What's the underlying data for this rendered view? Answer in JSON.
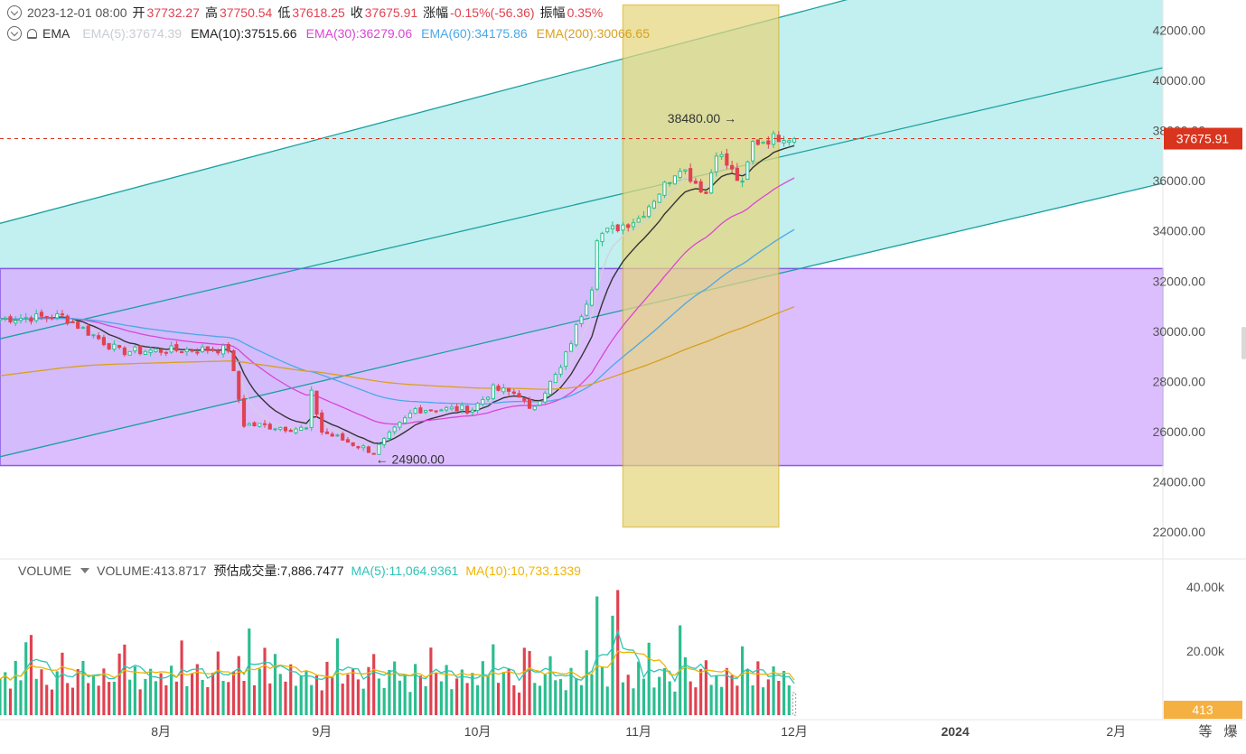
{
  "header": {
    "date": "2023-12-01 08:00",
    "open_label": "开",
    "open": "37732.27",
    "high_label": "高",
    "high": "37750.54",
    "low_label": "低",
    "low": "37618.25",
    "close_label": "收",
    "close": "37675.91",
    "change_label": "涨幅",
    "change": "-0.15%(-56.36)",
    "amp_label": "振幅",
    "amp": "0.35%"
  },
  "ema_header": {
    "label": "EMA",
    "ema5": "EMA(5):37674.39",
    "ema10": "EMA(10):37515.66",
    "ema30": "EMA(30):36279.06",
    "ema60": "EMA(60):34175.86",
    "ema200": "EMA(200):30066.65"
  },
  "volume_header": {
    "label": "VOLUME",
    "volume": "VOLUME:413.8717",
    "estimate": "预估成交量:7,886.7477",
    "ma5": "MA(5):11,064.9361",
    "ma10": "MA(10):10,733.1339"
  },
  "price_axis": {
    "ticks": [
      "42000.00",
      "40000.00",
      "38000.00",
      "36000.00",
      "34000.00",
      "32000.00",
      "30000.00",
      "28000.00",
      "26000.00",
      "24000.00",
      "22000.00"
    ],
    "current_label": "37675.91"
  },
  "volume_axis": {
    "ticks": [
      "40.00k",
      "20.00k"
    ],
    "current_label": "413"
  },
  "time_axis": {
    "ticks": [
      "8月",
      "9月",
      "10月",
      "11月",
      "12月",
      "2024",
      "2月"
    ],
    "right_icons": [
      "等",
      "爆"
    ]
  },
  "annotations": {
    "high_marker": "38480.00",
    "low_marker": "24900.00"
  },
  "colors": {
    "up": "#2bbd8f",
    "down": "#e04251",
    "ema5": "#cfd3d9",
    "ema10": "#333333",
    "ema30": "#d946d4",
    "ema60": "#4aa8e8",
    "ema200": "#d8a020",
    "channel_fill": "#bfeeee",
    "channel_line": "#1aa0a0",
    "range_fill": "#d7b3ff",
    "range_line": "#7b3fe4",
    "highlight_fill": "#e6d67e",
    "highlight_line": "#d9b62a",
    "current_price": "#d9341e",
    "vol_ma5": "#2ec4b6",
    "vol_ma10": "#f0b400"
  },
  "chart_data": {
    "type": "candlestick",
    "interval": "1D",
    "xlim": [
      "2023-07-01",
      "2024-02-10"
    ],
    "ylim": [
      21000,
      43200
    ],
    "volume_ylim": [
      0,
      47000
    ],
    "current_price": 37675.91,
    "high_marker": {
      "date": "2023-11-23",
      "value": 38480
    },
    "low_marker": {
      "date": "2023-09-11",
      "value": 24900
    },
    "shapes": {
      "channel": {
        "upper": [
          [
            "2023-07-01",
            34300
          ],
          [
            "2023-12-31",
            44300
          ]
        ],
        "mid": [
          [
            "2023-07-01",
            29700
          ],
          [
            "2024-02-10",
            40500
          ]
        ],
        "lower": [
          [
            "2023-07-01",
            25000
          ],
          [
            "2024-02-10",
            35900
          ]
        ]
      },
      "range_box": {
        "from": "2023-07-01",
        "to": "2024-02-10",
        "low": 24650,
        "high": 32500
      },
      "highlight_box": {
        "from": "2023-10-29",
        "to": "2023-11-28",
        "low": 22200,
        "high": 43000
      }
    },
    "anchors": [
      [
        "2023-07-01",
        30500
      ],
      [
        "2023-07-13",
        30600
      ],
      [
        "2023-07-24",
        29200
      ],
      [
        "2023-08-14",
        29300
      ],
      [
        "2023-08-17",
        26300
      ],
      [
        "2023-08-29",
        26100
      ],
      [
        "2023-08-30",
        27500
      ],
      [
        "2023-09-01",
        26000
      ],
      [
        "2023-09-11",
        25200
      ],
      [
        "2023-09-19",
        26900
      ],
      [
        "2023-09-30",
        26900
      ],
      [
        "2023-10-04",
        27700
      ],
      [
        "2023-10-09",
        27500
      ],
      [
        "2023-10-11",
        26800
      ],
      [
        "2023-10-17",
        28500
      ],
      [
        "2023-10-23",
        31800
      ],
      [
        "2023-10-24",
        33800
      ],
      [
        "2023-11-01",
        34500
      ],
      [
        "2023-11-09",
        36600
      ],
      [
        "2023-11-14",
        35500
      ],
      [
        "2023-11-16",
        37200
      ],
      [
        "2023-11-21",
        35800
      ],
      [
        "2023-11-23",
        37500
      ],
      [
        "2023-11-29",
        37800
      ],
      [
        "2023-12-01",
        37676
      ]
    ],
    "ema": [
      {
        "name": "EMA(5)",
        "period": 5,
        "last": 37674.39
      },
      {
        "name": "EMA(10)",
        "period": 10,
        "last": 37515.66
      },
      {
        "name": "EMA(30)",
        "period": 30,
        "last": 36279.06
      },
      {
        "name": "EMA(60)",
        "period": 60,
        "last": 34175.86
      },
      {
        "name": "EMA(200)",
        "period": 200,
        "last": 30066.65,
        "start": 28200
      }
    ],
    "volume": {
      "pattern": [
        9,
        12,
        7,
        15,
        10,
        22,
        8,
        11,
        14,
        9,
        7,
        13,
        18,
        10,
        8,
        12,
        16,
        9,
        11,
        7,
        14,
        10,
        8,
        19,
        12,
        9,
        15,
        7,
        11,
        13
      ],
      "spikes": [
        [
          "2023-07-07",
          25000
        ],
        [
          "2023-07-25",
          22000
        ],
        [
          "2023-08-18",
          27000
        ],
        [
          "2023-08-21",
          21000
        ],
        [
          "2023-10-10",
          21000
        ],
        [
          "2023-10-24",
          37000
        ],
        [
          "2023-10-27",
          31000
        ],
        [
          "2023-10-28",
          39000
        ],
        [
          "2023-11-09",
          28000
        ]
      ],
      "last": 413.87
    },
    "vol_ma": [
      {
        "name": "MA(5)",
        "last": 11064.9361
      },
      {
        "name": "MA(10)",
        "last": 10733.1339
      }
    ]
  }
}
